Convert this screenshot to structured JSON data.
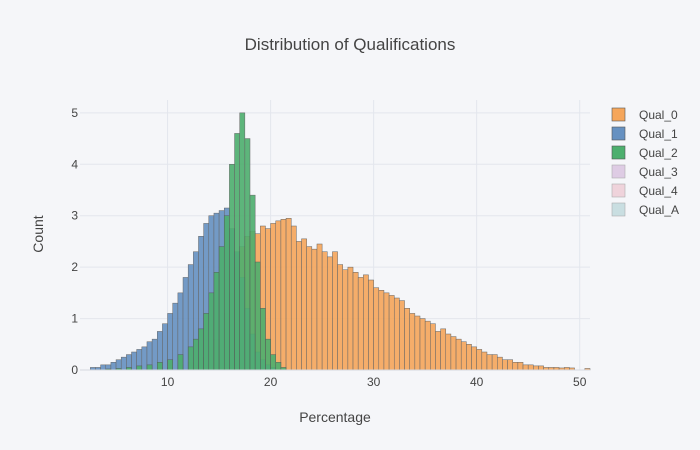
{
  "chart_data": {
    "type": "bar",
    "subtype": "overlaid histogram",
    "title": "Distribution of Qualifications",
    "xlabel": "Percentage",
    "ylabel": "Count",
    "xlim": [
      1.5,
      51
    ],
    "ylim": [
      0,
      5.25
    ],
    "xticks": [
      10,
      20,
      30,
      40,
      50
    ],
    "yticks": [
      0,
      1,
      2,
      3,
      4,
      5
    ],
    "bin_width": 0.5,
    "grid": true,
    "legend_position": "right",
    "series": [
      {
        "name": "Qual_0",
        "color": "#f5a65b",
        "visible": true,
        "bins": [
          [
            9.0,
            0.05
          ],
          [
            10.0,
            0.05
          ],
          [
            11.0,
            0.1
          ],
          [
            12.0,
            0.15
          ],
          [
            13.0,
            0.25
          ],
          [
            14.0,
            0.45
          ],
          [
            14.5,
            0.6
          ],
          [
            15.0,
            0.8
          ],
          [
            15.5,
            1.1
          ],
          [
            16.0,
            1.5
          ],
          [
            16.5,
            2.0
          ],
          [
            17.0,
            2.4
          ],
          [
            17.5,
            2.6
          ],
          [
            18.0,
            2.7
          ],
          [
            18.5,
            2.65
          ],
          [
            19.0,
            2.8
          ],
          [
            19.5,
            2.75
          ],
          [
            20.0,
            2.85
          ],
          [
            20.5,
            2.9
          ],
          [
            21.0,
            2.93
          ],
          [
            21.5,
            2.95
          ],
          [
            22.0,
            2.8
          ],
          [
            22.5,
            2.5
          ],
          [
            23.0,
            2.55
          ],
          [
            23.5,
            2.4
          ],
          [
            24.0,
            2.35
          ],
          [
            24.5,
            2.45
          ],
          [
            25.0,
            2.3
          ],
          [
            25.5,
            2.2
          ],
          [
            26.0,
            2.3
          ],
          [
            26.5,
            2.05
          ],
          [
            27.0,
            1.95
          ],
          [
            27.5,
            2.0
          ],
          [
            28.0,
            1.9
          ],
          [
            28.5,
            1.8
          ],
          [
            29.0,
            1.85
          ],
          [
            29.5,
            1.75
          ],
          [
            30.0,
            1.6
          ],
          [
            30.5,
            1.55
          ],
          [
            31.0,
            1.5
          ],
          [
            31.5,
            1.45
          ],
          [
            32.0,
            1.4
          ],
          [
            32.5,
            1.35
          ],
          [
            33.0,
            1.2
          ],
          [
            33.5,
            1.1
          ],
          [
            34.0,
            1.05
          ],
          [
            34.5,
            1.0
          ],
          [
            35.0,
            0.95
          ],
          [
            35.5,
            0.9
          ],
          [
            36.0,
            0.75
          ],
          [
            36.5,
            0.8
          ],
          [
            37.0,
            0.7
          ],
          [
            37.5,
            0.65
          ],
          [
            38.0,
            0.6
          ],
          [
            38.5,
            0.55
          ],
          [
            39.0,
            0.5
          ],
          [
            39.5,
            0.45
          ],
          [
            40.0,
            0.4
          ],
          [
            40.5,
            0.35
          ],
          [
            41.0,
            0.3
          ],
          [
            41.5,
            0.3
          ],
          [
            42.0,
            0.25
          ],
          [
            42.5,
            0.2
          ],
          [
            43.0,
            0.2
          ],
          [
            43.5,
            0.15
          ],
          [
            44.0,
            0.15
          ],
          [
            44.5,
            0.1
          ],
          [
            45.0,
            0.1
          ],
          [
            45.5,
            0.08
          ],
          [
            46.0,
            0.08
          ],
          [
            46.5,
            0.05
          ],
          [
            47.0,
            0.05
          ],
          [
            47.5,
            0.05
          ],
          [
            48.0,
            0.04
          ],
          [
            48.5,
            0.05
          ],
          [
            49.0,
            0.04
          ],
          [
            50.5,
            0.03
          ]
        ]
      },
      {
        "name": "Qual_1",
        "color": "#6691c1",
        "visible": true,
        "bins": [
          [
            2.5,
            0.05
          ],
          [
            3.0,
            0.05
          ],
          [
            3.5,
            0.1
          ],
          [
            4.0,
            0.1
          ],
          [
            4.5,
            0.15
          ],
          [
            5.0,
            0.2
          ],
          [
            5.5,
            0.25
          ],
          [
            6.0,
            0.3
          ],
          [
            6.5,
            0.35
          ],
          [
            7.0,
            0.4
          ],
          [
            7.5,
            0.45
          ],
          [
            8.0,
            0.55
          ],
          [
            8.5,
            0.6
          ],
          [
            9.0,
            0.75
          ],
          [
            9.5,
            0.9
          ],
          [
            10.0,
            1.1
          ],
          [
            10.5,
            1.3
          ],
          [
            11.0,
            1.5
          ],
          [
            11.5,
            1.8
          ],
          [
            12.0,
            2.05
          ],
          [
            12.5,
            2.3
          ],
          [
            13.0,
            2.6
          ],
          [
            13.5,
            2.85
          ],
          [
            14.0,
            3.0
          ],
          [
            14.5,
            3.05
          ],
          [
            15.0,
            3.1
          ],
          [
            15.5,
            3.15
          ],
          [
            16.0,
            2.75
          ],
          [
            16.5,
            2.3
          ],
          [
            17.0,
            1.8
          ],
          [
            17.5,
            1.2
          ],
          [
            18.0,
            0.7
          ],
          [
            18.5,
            0.35
          ],
          [
            19.0,
            0.2
          ],
          [
            19.5,
            0.1
          ],
          [
            20.0,
            0.05
          ]
        ]
      },
      {
        "name": "Qual_2",
        "color": "#4daf6e",
        "visible": true,
        "bins": [
          [
            4.0,
            0.02
          ],
          [
            5.0,
            0.03
          ],
          [
            6.0,
            0.05
          ],
          [
            7.0,
            0.08
          ],
          [
            8.0,
            0.1
          ],
          [
            9.0,
            0.15
          ],
          [
            10.0,
            0.2
          ],
          [
            11.0,
            0.3
          ],
          [
            12.0,
            0.45
          ],
          [
            12.5,
            0.6
          ],
          [
            13.0,
            0.8
          ],
          [
            13.5,
            1.1
          ],
          [
            14.0,
            1.5
          ],
          [
            14.5,
            1.9
          ],
          [
            15.0,
            2.4
          ],
          [
            15.5,
            3.0
          ],
          [
            16.0,
            4.0
          ],
          [
            16.5,
            4.6
          ],
          [
            17.0,
            5.0
          ],
          [
            17.5,
            4.5
          ],
          [
            18.0,
            3.4
          ],
          [
            18.5,
            2.1
          ],
          [
            19.0,
            1.2
          ],
          [
            19.5,
            0.6
          ],
          [
            20.0,
            0.3
          ],
          [
            20.5,
            0.15
          ],
          [
            21.0,
            0.05
          ]
        ]
      },
      {
        "name": "Qual_3",
        "color": "#c49bcc",
        "visible": false,
        "bins": []
      },
      {
        "name": "Qual_4",
        "color": "#e9aab7",
        "visible": false,
        "bins": []
      },
      {
        "name": "Qual_A",
        "color": "#95c2c6",
        "visible": false,
        "bins": []
      }
    ]
  }
}
